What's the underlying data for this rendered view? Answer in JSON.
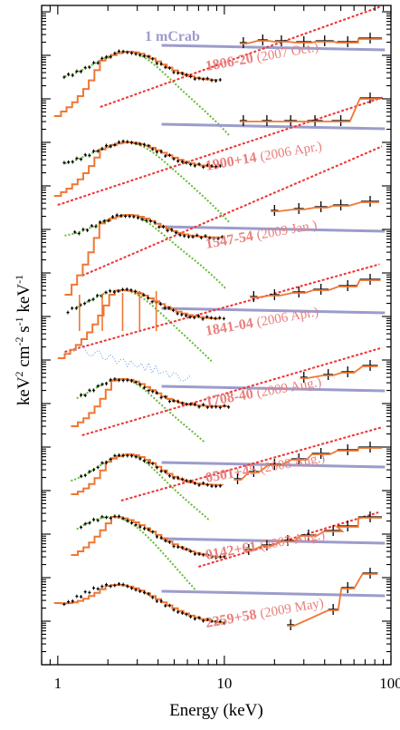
{
  "chart_data": {
    "type": "line",
    "xlabel": "Energy (keV)",
    "ylabel": "keV2 cm-2 s-1 keV-1",
    "ylabel_parts": {
      "base": "keV",
      "exp1": "2",
      "mid1": " cm",
      "exp2": "-2",
      "mid2": " s",
      "exp3": "-1",
      "mid3": " keV",
      "exp4": "-1"
    },
    "x_scale": "log",
    "xlim": [
      0.8,
      100
    ],
    "x_ticks": [
      {
        "value": 1,
        "label": "1"
      },
      {
        "value": 10,
        "label": "10"
      },
      {
        "value": 100,
        "label": "100"
      }
    ],
    "reference_line_label": "1 mCrab",
    "colors": {
      "reference_line": "#9c9ccc",
      "data_points": "#000000",
      "total_model": "#ee7733",
      "soft_component": "#66bb33",
      "hard_component": "#ee3333",
      "line_components": "#77aadd",
      "source_label": "#e8807e"
    },
    "series": [
      {
        "name": "1806-20",
        "date": "(2007 Oct.)"
      },
      {
        "name": "1900+14",
        "date": "(2006 Apr.)"
      },
      {
        "name": "1547-54",
        "date": "(2009 Jan.)"
      },
      {
        "name": "1841-04",
        "date": "(2006 Apr.)"
      },
      {
        "name": "1708-40",
        "date": "(2009 Aug.)"
      },
      {
        "name": "0501+45",
        "date": "(2008 Aug.)"
      },
      {
        "name": "0142+61",
        "date": "(2007 Aug.)"
      },
      {
        "name": "2259+58",
        "date": "(2009 May)"
      }
    ]
  }
}
